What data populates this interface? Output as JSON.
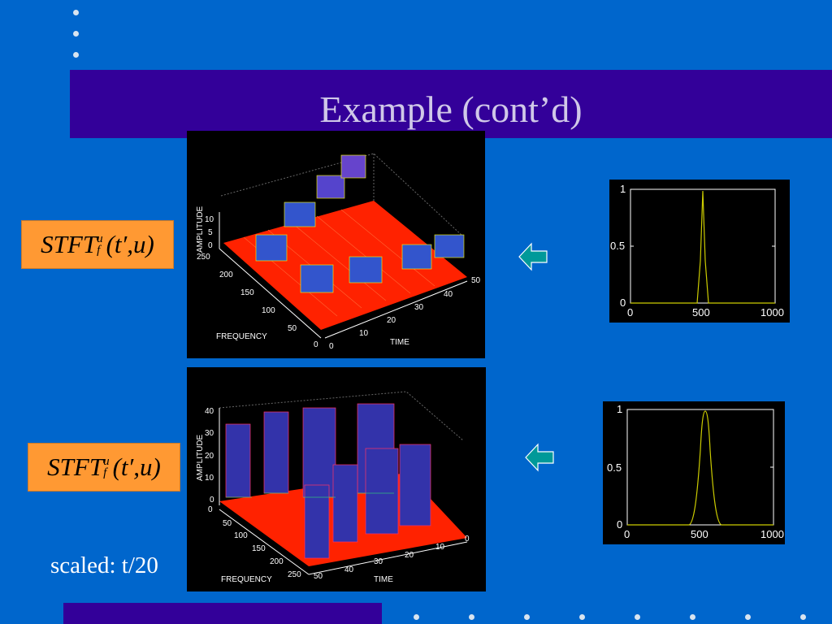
{
  "slide": {
    "title": "Example (cont’d)",
    "caption": "scaled: t/20"
  },
  "formula_top": {
    "main": "STFT",
    "sup": "u",
    "sub": "f",
    "args": "(t′,u)"
  },
  "formula_bottom": {
    "main": "STFT",
    "sup": "u",
    "sub": "f",
    "args": "(t′,u)"
  },
  "plot_top_3d": {
    "axis_amplitude": "AMPLITUDE",
    "axis_frequency": "FREQUENCY",
    "axis_time": "TIME",
    "amp_ticks": [
      "10",
      "5",
      "0"
    ],
    "freq_ticks": [
      "250",
      "200",
      "150",
      "100",
      "50",
      "0"
    ],
    "time_ticks": [
      "0",
      "10",
      "20",
      "30",
      "40",
      "50"
    ]
  },
  "plot_bottom_3d": {
    "axis_amplitude": "AMPLITUDE",
    "axis_frequency": "FREQUENCY",
    "axis_time": "TIME",
    "amp_ticks": [
      "40",
      "30",
      "20",
      "10",
      "0",
      "0"
    ],
    "freq_ticks": [
      "50",
      "100",
      "150",
      "200",
      "250"
    ],
    "time_ticks": [
      "0",
      "10",
      "20",
      "30",
      "40",
      "50"
    ]
  },
  "window_top": {
    "y_ticks": [
      "1",
      "0.5",
      "0"
    ],
    "x_ticks": [
      "0",
      "500",
      "1000"
    ]
  },
  "window_bottom": {
    "y_ticks": [
      "1",
      "0.5",
      "0"
    ],
    "x_ticks": [
      "0",
      "500",
      "1000"
    ]
  },
  "colors": {
    "background": "#0066cc",
    "band": "#330099",
    "formula_box": "#ff9933",
    "arrow": "#009999",
    "curve": "#cccc00"
  }
}
